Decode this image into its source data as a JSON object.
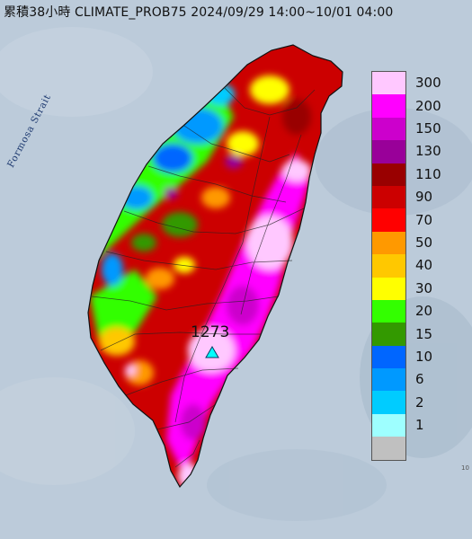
{
  "title": "累積38小時 CLIMATE_PROB75 2024/09/29 14:00~10/01 04:00",
  "strait_label": "Formosa Strait",
  "max_marker": {
    "value": "1273",
    "marker_icon": "cyan-triangle-icon"
  },
  "corner_text": "10",
  "legend": {
    "items": [
      {
        "label": "300",
        "color": "#ffc8ff"
      },
      {
        "label": "200",
        "color": "#ff00ff"
      },
      {
        "label": "150",
        "color": "#cc00cc"
      },
      {
        "label": "130",
        "color": "#990099"
      },
      {
        "label": "110",
        "color": "#990000"
      },
      {
        "label": "90",
        "color": "#cc0000"
      },
      {
        "label": "70",
        "color": "#ff0000"
      },
      {
        "label": "50",
        "color": "#ff9900"
      },
      {
        "label": "40",
        "color": "#ffc800"
      },
      {
        "label": "30",
        "color": "#ffff00"
      },
      {
        "label": "20",
        "color": "#33ff00"
      },
      {
        "label": "15",
        "color": "#339900"
      },
      {
        "label": "10",
        "color": "#0066ff"
      },
      {
        "label": "6",
        "color": "#0099ff"
      },
      {
        "label": "2",
        "color": "#00ccff"
      },
      {
        "label": "1",
        "color": "#9effff"
      },
      {
        "label": "",
        "color": "#c0c0c0"
      }
    ]
  }
}
